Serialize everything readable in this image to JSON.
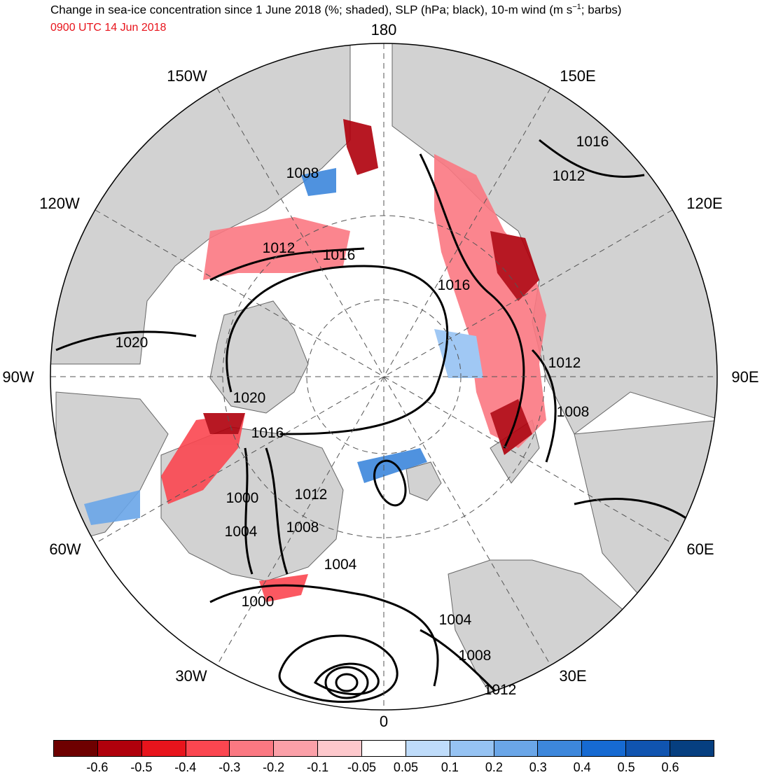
{
  "header": {
    "title_main": "Change in sea-ice concentration since 1 June 2018 (%; shaded), SLP (hPa; black), 10-m wind (m s",
    "title_sup": "−1",
    "title_end": "; barbs)",
    "valid_time": "0900 UTC 14 Jun 2018"
  },
  "map": {
    "projection": "north-polar-stereographic",
    "longitude_labels": {
      "lon_180": "180",
      "lon_150e": "150E",
      "lon_120e": "120E",
      "lon_90e": "90E",
      "lon_60e": "60E",
      "lon_30e": "30E",
      "lon_0": "0",
      "lon_30w": "30W",
      "lon_60w": "60W",
      "lon_90w": "90W",
      "lon_120w": "120W",
      "lon_150w": "150W"
    },
    "slp_contour_labels": {
      "c1": "1016",
      "c2": "1012",
      "c3": "1008",
      "c4": "1012",
      "c5": "1016",
      "c6": "1016",
      "c7": "1012",
      "c8": "1008",
      "c9": "1020",
      "c10": "1020",
      "c11": "1016",
      "c12": "1012",
      "c13": "1000",
      "c14": "1004",
      "c15": "1008",
      "c16": "1004",
      "c17": "1000",
      "c18": "1004",
      "c19": "1008",
      "c20": "1012"
    },
    "colors": {
      "land": "#d2d2d2",
      "ocean": "#ffffff",
      "contour": "#000000",
      "graticule": "#555555"
    }
  },
  "colorbar": {
    "tick_labels": [
      "-0.6",
      "-0.5",
      "-0.4",
      "-0.3",
      "-0.2",
      "-0.1",
      "-0.05",
      "0.05",
      "0.1",
      "0.2",
      "0.3",
      "0.4",
      "0.5",
      "0.6"
    ],
    "colors": [
      "#6e0000",
      "#b0000c",
      "#e8141c",
      "#fb4650",
      "#fb7882",
      "#fba0a8",
      "#fdc8cc",
      "#ffffff",
      "#bfdcfa",
      "#96c3f3",
      "#6aa6e8",
      "#3d87dc",
      "#166ad2",
      "#1054b0",
      "#063f80"
    ]
  }
}
